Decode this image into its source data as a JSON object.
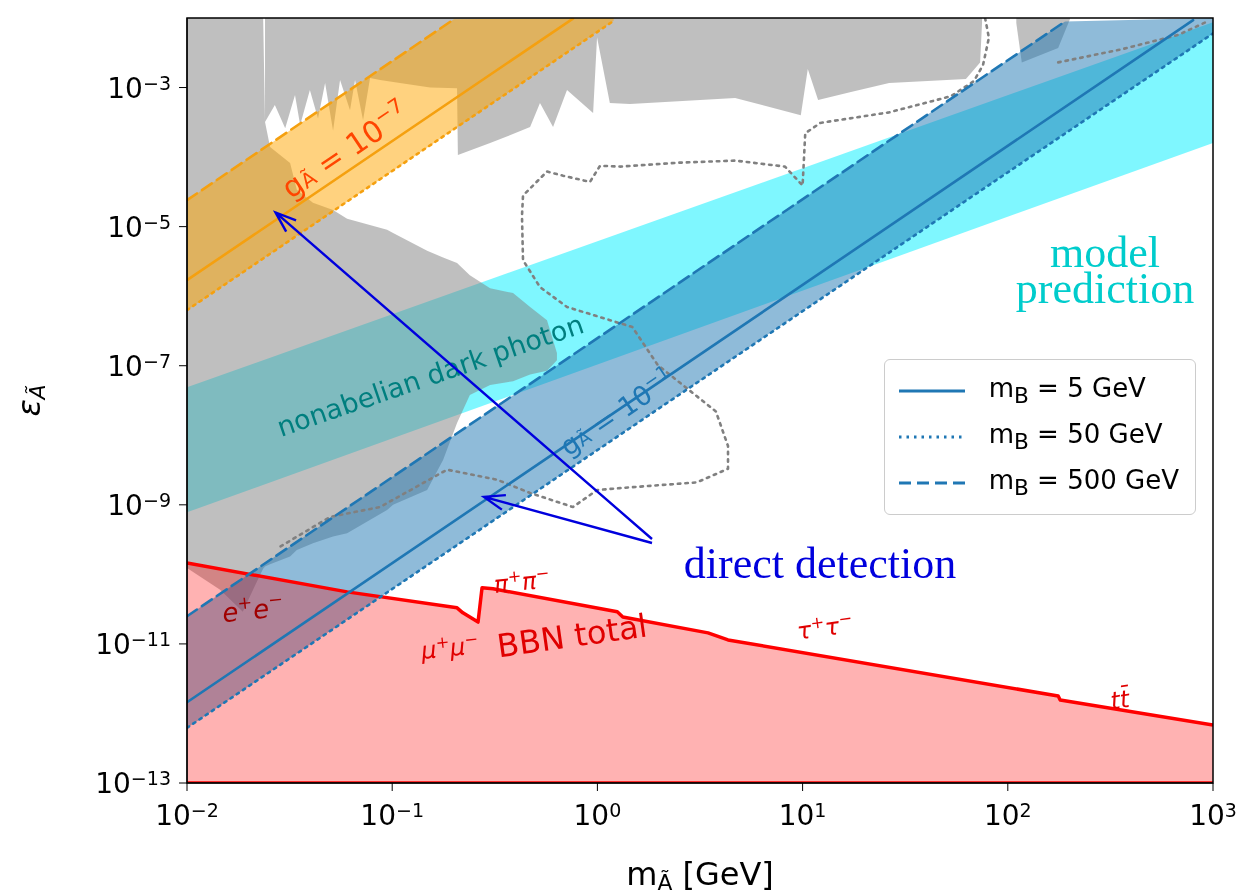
{
  "chart_data": {
    "type": "line",
    "xlabel": "m$_{Ã}$ [GeV]",
    "ylabel": "ε$_{Ã}$",
    "log": "xy",
    "legend": "right",
    "xlim": [
      0.01,
      1000
    ],
    "ylim": [
      1e-13,
      0.01
    ],
    "xticks": [
      {
        "value": 0.01,
        "label": "10$^{−2}$"
      },
      {
        "value": 0.1,
        "label": "10$^{−1}$"
      },
      {
        "value": 1,
        "label": "10$^{0}$"
      },
      {
        "value": 10,
        "label": "10$^{1}$"
      },
      {
        "value": 100,
        "label": "10$^{2}$"
      },
      {
        "value": 1000,
        "label": "10$^{3}$"
      }
    ],
    "yticks": [
      {
        "value": 1e-13,
        "label": "10$^{−13}$"
      },
      {
        "value": 1e-11,
        "label": "10$^{−11}$"
      },
      {
        "value": 1e-09,
        "label": "10$^{−9}$"
      },
      {
        "value": 1e-07,
        "label": "10$^{−7}$"
      },
      {
        "value": 1e-05,
        "label": "10$^{−5}$"
      },
      {
        "value": 0.001,
        "label": "10$^{−3}$"
      }
    ],
    "series": [
      {
        "color": "#00f0ff",
        "x": [
          0.01,
          1000
        ],
        "values": [
          null,
          null
        ],
        "lower": [
          7.8e-10,
          0.00016
        ],
        "upper": [
          4.9e-08,
          0.0087
        ]
      },
      {
        "color": "#808080",
        "x": [
          0.01,
          0.0145,
          0.0187,
          0.0227,
          0.0235,
          0.024,
          0.0254,
          0.0318,
          0.0343,
          0.0411,
          0.0515,
          0.0603,
          0.0944,
          0.101,
          0.148,
          0.177,
          0.207,
          0.239,
          0.3,
          0.388,
          0.47,
          0.568,
          0.635
        ],
        "values": [
          null,
          null,
          null,
          null,
          null,
          null,
          null,
          null,
          null,
          null,
          null,
          null,
          null,
          null,
          null,
          null,
          null,
          null,
          null,
          null,
          null,
          null,
          null
        ],
        "upper": [
          0.01,
          0.01,
          0.01,
          0.01,
          0.01,
          0.00032,
          0.00014,
          8.2e-05,
          3.4e-05,
          2.2e-05,
          1.73e-05,
          1.3e-05,
          9e-06,
          8.1e-06,
          4.5e-06,
          3.6e-06,
          3e-06,
          2e-06,
          1.3e-06,
          1.11e-06,
          7e-07,
          4.5e-07,
          1.52e-07
        ],
        "lower": [
          1.23e-10,
          6e-11,
          2.9e-11,
          9.8e-11,
          1.2e-10,
          1.3e-10,
          1.4e-10,
          1.8e-10,
          2.24e-10,
          2.8e-10,
          3.5e-10,
          3.9e-10,
          8.4e-10,
          1e-09,
          1.63e-09,
          4.4e-09,
          1.5e-08,
          3.8e-08,
          5.3e-08,
          6e-08,
          7.5e-08,
          8.5e-08,
          1.2e-07
        ]
      },
      {
        "color": "#808080",
        "x": [
          0.024,
          0.0268,
          0.0301,
          0.0336,
          0.0356,
          0.0397,
          0.0435,
          0.0471,
          0.0515,
          0.0557,
          0.0623,
          0.0659,
          0.0721,
          0.078,
          0.0873,
          0.109,
          0.153,
          0.207,
          0.209,
          0.3,
          0.47,
          0.525,
          0.608,
          0.711,
          0.953,
          0.996,
          1.15,
          1.44,
          4.69,
          9.8,
          10.6,
          11.9,
          17.2,
          26.4,
          62.5,
          73.3,
          74.9
        ],
        "values": [
          null,
          null,
          null,
          null,
          null,
          null,
          null,
          null,
          null,
          null,
          null,
          null,
          null,
          null,
          null,
          null,
          null,
          null,
          null,
          null,
          null,
          null,
          null,
          null,
          null,
          null,
          null,
          null,
          null,
          null,
          null,
          null,
          null,
          null,
          null,
          null,
          null
        ],
        "upper": [
          0.01,
          0.01,
          0.01,
          0.01,
          0.01,
          0.01,
          0.01,
          0.01,
          0.01,
          0.01,
          0.01,
          0.01,
          0.01,
          0.01,
          0.01,
          0.01,
          0.01,
          0.01,
          0.01,
          0.01,
          0.01,
          0.01,
          0.01,
          0.01,
          0.01,
          0.01,
          0.01,
          0.01,
          0.01,
          0.01,
          0.01,
          0.01,
          0.01,
          0.01,
          0.01,
          0.01,
          0.01
        ],
        "lower": [
          0.00032,
          0.00056,
          0.00026,
          0.00078,
          0.00029,
          0.00092,
          0.00036,
          0.00116,
          0.00024,
          0.00128,
          0.00047,
          0.00128,
          0.00034,
          0.00137,
          0.00128,
          0.00116,
          0.001,
          0.00098,
          0.000107,
          0.000159,
          0.00027,
          0.0006,
          0.00027,
          0.00092,
          0.00043,
          0.0053,
          0.0006,
          0.00058,
          0.00071,
          0.0004,
          0.00185,
          0.00066,
          0.00086,
          0.00116,
          0.00133,
          0.0023,
          0.0085
        ]
      },
      {
        "color": "#808080",
        "x": [
          110,
          117,
          176,
          201
        ],
        "values": [
          null,
          null,
          null,
          null
        ],
        "upper": [
          0.01,
          0.01,
          0.01,
          0.01
        ],
        "lower": [
          0.0085,
          0.0023,
          0.0037,
          0.0097
        ]
      },
      {
        "color": "#ffa500",
        "x": [
          0.01,
          0.2,
          1.2
        ],
        "values": [
          null,
          null,
          null
        ],
        "upper": [
          2.4e-05,
          0.0096,
          0.01
        ],
        "lower": [
          6.3e-07,
          0.00025,
          0.0091
        ]
      },
      {
        "color": "#1f77b4",
        "x": [
          0.01,
          190,
          1000
        ],
        "values": [
          null,
          null,
          null
        ],
        "upper": [
          2.5e-11,
          0.0089,
          0.01
        ],
        "lower": [
          6.2e-13,
          0.00022,
          0.006
        ]
      },
      {
        "type": "area",
        "color": "#ff0000",
        "x": [
          0.01,
          0.0603,
          0.207,
          0.221,
          0.262,
          0.274,
          0.31,
          1.25,
          1.33,
          3.46,
          4.33,
          176,
          180,
          1000
        ],
        "values": [
          1.46e-10,
          5.6e-11,
          3.3e-11,
          2.8e-11,
          2.06e-11,
          6.4e-11,
          6.2e-11,
          2.9e-11,
          2.44e-11,
          1.44e-11,
          1.14e-11,
          1.78e-12,
          1.56e-12,
          6.8e-13
        ]
      },
      {
        "type": "line",
        "color": "#808080",
        "line_style": "dotted",
        "x": [
          77.5,
          80.9,
          75.7,
          68.4,
          52.8,
          26.4,
          12.2,
          10.3,
          10,
          8.2,
          4.69,
          2.47,
          1.29,
          1.03,
          0.92,
          0.68,
          0.568,
          0.434,
          0.429,
          0.434,
          0.525,
          0.711,
          1.48,
          1.97,
          3.78,
          4.33,
          4.33,
          3.05,
          1.29,
          0.996,
          0.76,
          0.47,
          0.324,
          0.185,
          0.0873,
          0.0498,
          0.0284
        ],
        "values": [
          0.01,
          0.0052,
          0.0021,
          0.00124,
          0.00075,
          0.00044,
          0.00031,
          0.00022,
          3.9e-05,
          7.3e-05,
          8.9e-05,
          8.3e-05,
          7.3e-05,
          7.5e-05,
          4.4e-05,
          5.4e-05,
          6.2e-05,
          2.8e-05,
          1.43e-05,
          3.3e-06,
          1.35e-06,
          7e-07,
          3.6e-07,
          1.02e-07,
          2.2e-08,
          7e-09,
          3.3e-09,
          2.1e-09,
          1.74e-09,
          1.63e-09,
          9.3e-10,
          1.48e-09,
          2.3e-09,
          3.2e-09,
          9.3e-10,
          6.7e-10,
          2.5e-10
        ]
      },
      {
        "type": "line",
        "color": "#808080",
        "line_style": "dotted",
        "x": [
          176,
          352,
          675,
          946
        ],
        "values": [
          0.0023,
          0.0035,
          0.0057,
          0.009
        ]
      },
      {
        "type": "line",
        "color": "#f5a00f",
        "line_style": "solid",
        "x": [
          0.01,
          0.76
        ],
        "values": [
          1.7e-06,
          0.0098
        ]
      },
      {
        "type": "line",
        "color": "#f5a00f",
        "line_style": "dotted",
        "x": [
          0.01,
          1.2
        ],
        "values": [
          6.3e-07,
          0.0091
        ]
      },
      {
        "type": "line",
        "color": "#f5a00f",
        "line_style": "dashed",
        "x": [
          0.01,
          0.2
        ],
        "values": [
          2.4e-05,
          0.0096
        ]
      },
      {
        "type": "line",
        "name": "m$_{B}$ = 5 GeV",
        "color": "#1f77b4",
        "line_style": "solid",
        "x": [
          0.01,
          800
        ],
        "values": [
          1.45e-12,
          0.0093
        ]
      },
      {
        "type": "line",
        "name": "m$_{B}$ = 50 GeV",
        "color": "#1f77b4",
        "line_style": "dotted",
        "x": [
          0.01,
          1000
        ],
        "values": [
          6.2e-13,
          0.006
        ]
      },
      {
        "type": "line",
        "name": "m$_{B}$ = 500 GeV",
        "color": "#1f77b4",
        "line_style": "dashed",
        "x": [
          0.01,
          190
        ],
        "values": [
          2.5e-11,
          0.0089
        ]
      }
    ],
    "annotations": [
      "g$_{Ã}$ = 10$^{−7}$",
      "nonabelian dark photon",
      "g$_{Ã}$ = 10$^{−1}$",
      "e$^{+}$e$^{−}$",
      "π$^{+}$π$^{−}$",
      "μ$^{+}$μ$^{−}$",
      "BBN total",
      "τ$^{+}$τ$^{−}$",
      "tt̄",
      "model\nprediction",
      {
        "text": "direct detection",
        "x": 0.28,
        "y": 1.3e-09
      }
    ]
  }
}
